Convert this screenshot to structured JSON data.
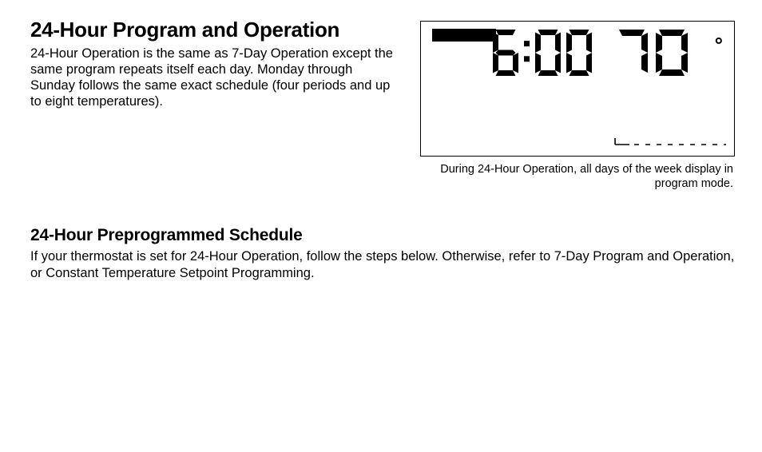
{
  "heading1": "24-Hour Program and Operation",
  "para1": "24-Hour Operation is the same as 7-Day Operation except the same program repeats itself each day. Monday through Sunday follows the same exact schedule (four periods and up to eight temperatures).",
  "lcd": {
    "time": "6:00",
    "temp": "70",
    "degree": "°",
    "bar_color": "#000000",
    "border_color": "#000000",
    "bg_color": "#ffffff",
    "digit_color": "#000000",
    "digit_height": 58,
    "caption": "During 24-Hour Operation, all days of the week display in program mode.",
    "tick_solid_width": 60,
    "tick_gap": 10,
    "tick_stroke": "#000000",
    "tick_y": 12
  },
  "heading2": "24-Hour Preprogrammed Schedule",
  "para2": "If your thermostat is set for 24-Hour Operation, follow the steps below. Otherwise, refer to 7-Day Program and Operation, or Constant Temperature Setpoint Programming."
}
